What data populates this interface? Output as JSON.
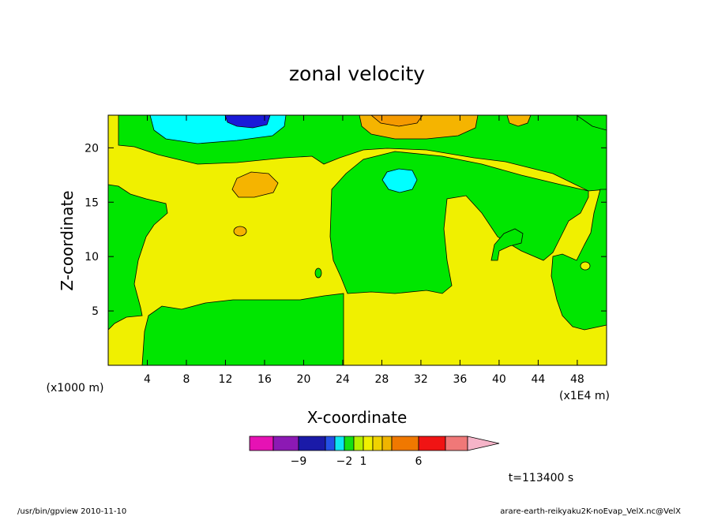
{
  "chart_data": {
    "type": "heatmap",
    "title": "zonal velocity",
    "xlabel": "X-coordinate",
    "ylabel": "Z-coordinate",
    "x_units_label": "(x1E4 m)",
    "y_units_label": "(x1000 m)",
    "xlim": [
      0,
      51
    ],
    "ylim": [
      0,
      23
    ],
    "x_ticks": [
      4,
      8,
      12,
      16,
      20,
      24,
      28,
      32,
      36,
      40,
      44,
      48
    ],
    "y_ticks": [
      5,
      10,
      15,
      20
    ],
    "colorbar": {
      "labels": [
        {
          "value": -9,
          "text": "−9"
        },
        {
          "value": -2,
          "text": "−2"
        },
        {
          "value": 1,
          "text": "1"
        },
        {
          "value": 6,
          "text": "6"
        }
      ],
      "colors": [
        "#e612b4",
        "#8c19b4",
        "#1a1aa8",
        "#2450e6",
        "#0fe6f0",
        "#13e013",
        "#b4f000",
        "#f0f000",
        "#f0d200",
        "#f0b400",
        "#f07800",
        "#f01414",
        "#f07878",
        "#f5b4c8"
      ]
    },
    "contour_levels": {
      "cyan": "#00ffff",
      "blue": "#1a1ad8",
      "green": "#00e600",
      "yellow": "#f0f000",
      "orange": "#f5b400",
      "deep_orange": "#f59a00"
    }
  },
  "time_label": "t=113400 s",
  "footer": {
    "left": "/usr/bin/gpview   2010-11-10",
    "right": "arare-earth-reikyaku2K-noEvap_VelX.nc@VelX"
  }
}
